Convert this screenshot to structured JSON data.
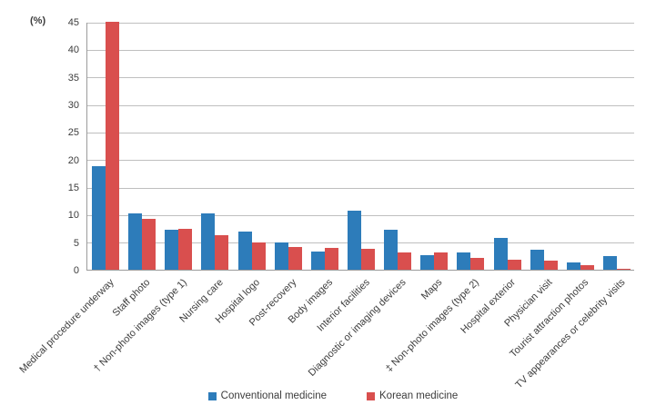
{
  "chart_data": {
    "type": "bar",
    "title": "",
    "xlabel": "",
    "ylabel": "(%)",
    "ylim": [
      0,
      45
    ],
    "ytick_step": 5,
    "grid": true,
    "legend_position": "bottom",
    "categories": [
      "Medical procedure underway",
      "Staff photo",
      "† Non-photo images (type 1)",
      "Nursing care",
      "Hospital logo",
      "Post-recovery",
      "Body images",
      "Interior facilities",
      "Diagnostic or imaging devices",
      "Maps",
      "‡ Non-photo images (type 2)",
      "Hospital exterior",
      "Physician visit",
      "Tourist attraction photos",
      "TV appearances or celebrity visits"
    ],
    "series": [
      {
        "name": "Conventional medicine",
        "color": "#2d7cba",
        "values": [
          18.8,
          10.2,
          7.2,
          10.2,
          7.0,
          4.9,
          3.3,
          10.7,
          7.2,
          2.6,
          3.1,
          5.7,
          3.6,
          1.3,
          2.4
        ]
      },
      {
        "name": "Korean medicine",
        "color": "#d94f4e",
        "values": [
          45.0,
          9.3,
          7.4,
          6.2,
          4.9,
          4.2,
          4.0,
          3.8,
          3.2,
          3.1,
          2.2,
          1.8,
          1.6,
          0.9,
          0.2
        ]
      }
    ]
  },
  "colors": {
    "conventional_blue": "#2d7cba",
    "korean_red": "#d94f4e",
    "gridline": "#bfbfbf",
    "axis": "#9b9b9b",
    "text": "#3c3c3c",
    "background": "#ffffff"
  }
}
